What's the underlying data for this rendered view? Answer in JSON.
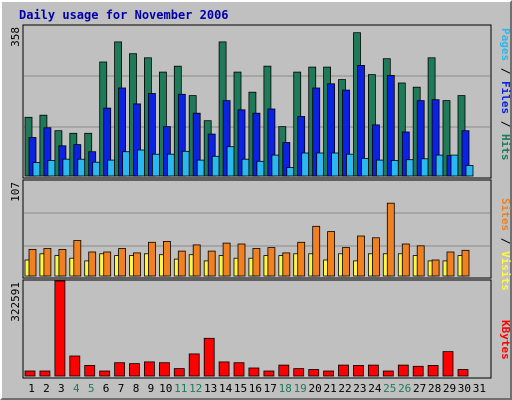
{
  "chart_data": [
    {
      "type": "bar",
      "title": "Daily usage for November 2006",
      "ylabel": "Pages / Files / Hits",
      "ymax_label": "358",
      "ylim": [
        0,
        358
      ],
      "categories": [
        "1",
        "2",
        "3",
        "4",
        "5",
        "6",
        "7",
        "8",
        "9",
        "10",
        "11",
        "12",
        "13",
        "14",
        "15",
        "16",
        "17",
        "18",
        "19",
        "20",
        "21",
        "22",
        "23",
        "24",
        "25",
        "26",
        "27",
        "28",
        "29",
        "30",
        "31"
      ],
      "series": [
        {
          "name": "Hits",
          "color": "#1f7a5a",
          "values": [
            140,
            145,
            108,
            102,
            102,
            272,
            320,
            292,
            282,
            248,
            262,
            192,
            132,
            320,
            248,
            200,
            262,
            118,
            248,
            260,
            260,
            230,
            342,
            242,
            280,
            222,
            212,
            282,
            180,
            192,
            0
          ]
        },
        {
          "name": "Files",
          "color": "#0b21e3",
          "values": [
            92,
            115,
            72,
            75,
            58,
            162,
            210,
            172,
            197,
            118,
            195,
            150,
            100,
            180,
            158,
            150,
            160,
            80,
            142,
            210,
            220,
            205,
            264,
            122,
            240,
            105,
            180,
            182,
            49,
            108,
            0
          ]
        },
        {
          "name": "Pages",
          "color": "#29b8f0",
          "values": [
            32,
            37,
            40,
            40,
            33,
            38,
            58,
            62,
            52,
            52,
            59,
            38,
            47,
            70,
            40,
            35,
            50,
            20,
            55,
            55,
            55,
            52,
            42,
            38,
            37,
            39,
            41,
            50,
            50,
            25,
            0
          ]
        }
      ]
    },
    {
      "type": "bar",
      "ylabel": "Sites / Visits",
      "ymax_label": "107",
      "ylim": [
        0,
        107
      ],
      "categories": [
        "1",
        "2",
        "3",
        "4",
        "5",
        "6",
        "7",
        "8",
        "9",
        "10",
        "11",
        "12",
        "13",
        "14",
        "15",
        "16",
        "17",
        "18",
        "19",
        "20",
        "21",
        "22",
        "23",
        "24",
        "25",
        "26",
        "27",
        "28",
        "29",
        "30",
        "31"
      ],
      "series": [
        {
          "name": "Visits",
          "color": "#fff640",
          "values": [
            18,
            25,
            23,
            20,
            17,
            25,
            23,
            23,
            25,
            24,
            19,
            24,
            17,
            23,
            20,
            20,
            23,
            23,
            25,
            25,
            18,
            25,
            17,
            25,
            25,
            25,
            23,
            17,
            17,
            23,
            0
          ]
        },
        {
          "name": "Sites",
          "color": "#f08020",
          "values": [
            30,
            31,
            30,
            40,
            27,
            27,
            31,
            26,
            38,
            39,
            28,
            35,
            28,
            37,
            36,
            31,
            32,
            26,
            38,
            56,
            50,
            32,
            45,
            43,
            82,
            36,
            34,
            18,
            27,
            29,
            0
          ]
        }
      ]
    },
    {
      "type": "bar",
      "ylabel": "KBytes",
      "ymax_label": "322591",
      "ylim": [
        0,
        322591
      ],
      "categories": [
        "1",
        "2",
        "3",
        "4",
        "5",
        "6",
        "7",
        "8",
        "9",
        "10",
        "11",
        "12",
        "13",
        "14",
        "15",
        "16",
        "17",
        "18",
        "19",
        "20",
        "21",
        "22",
        "23",
        "24",
        "25",
        "26",
        "27",
        "28",
        "29",
        "30",
        "31"
      ],
      "series": [
        {
          "name": "KBytes",
          "color": "#ff0000",
          "values": [
            17000,
            17000,
            322591,
            68000,
            36000,
            17000,
            45000,
            42000,
            48000,
            45000,
            25000,
            75000,
            128000,
            48000,
            45000,
            27000,
            17000,
            37000,
            25000,
            22000,
            17000,
            37000,
            36000,
            37000,
            17000,
            37000,
            33000,
            36000,
            83000,
            22000,
            0
          ]
        }
      ]
    }
  ],
  "x_label_colors": {
    "weekday": "#000000",
    "weekend": "#1f7a5a"
  },
  "weekend_days": [
    "4",
    "5",
    "11",
    "12",
    "18",
    "19",
    "25",
    "26"
  ]
}
